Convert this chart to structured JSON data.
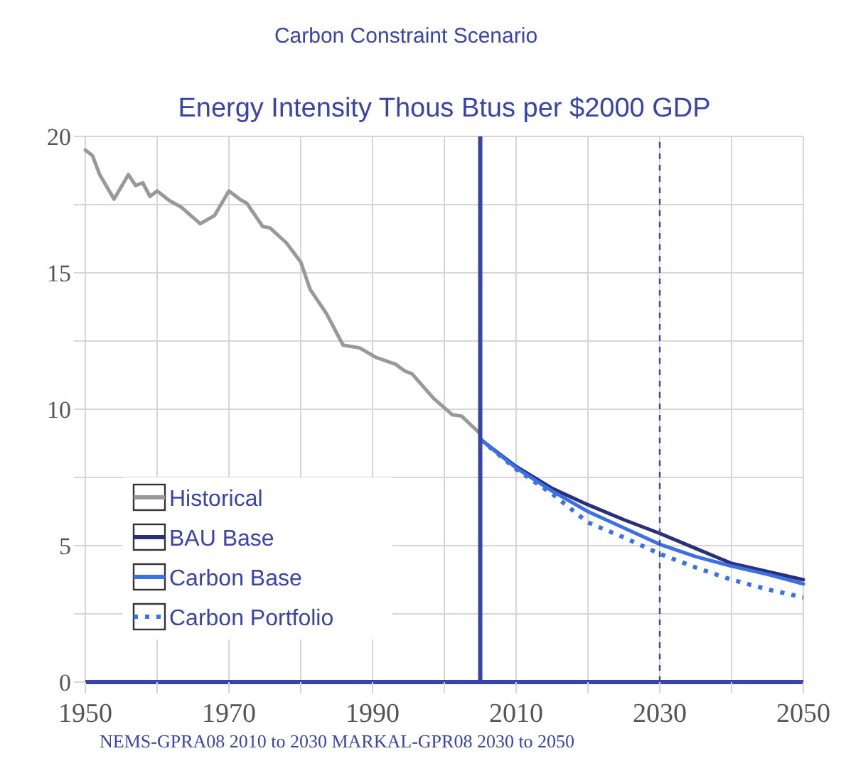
{
  "chart_data": {
    "type": "line",
    "title": "Carbon Constraint Scenario",
    "subtitle": "Energy Intensity Thous Btus per $2000 GDP",
    "annotations": [
      "NEMS-GPRA08 2010 to 2030  MARKAL-GPR08 2030 to 2050"
    ],
    "xlim": [
      1950,
      2050
    ],
    "xticks": [
      1950,
      {
        "value": 1960,
        "label": null
      },
      1970,
      {
        "value": 1980,
        "label": null
      },
      1990,
      {
        "value": 2000,
        "label": null
      },
      2010,
      {
        "value": 2020,
        "label": null
      },
      2030,
      {
        "value": 2040,
        "label": null
      },
      2050
    ],
    "ylim": [
      0,
      20
    ],
    "yticks": [
      0,
      {
        "value": 2.5,
        "label": null
      },
      5,
      {
        "value": 7.5,
        "label": null
      },
      10,
      {
        "value": 12.5,
        "label": null
      },
      15,
      {
        "value": 17.5,
        "label": null
      },
      20
    ],
    "grid": true,
    "legend": "bottom left",
    "marker": "none",
    "ref_lines": [
      {
        "axis": "x",
        "value": 2005,
        "color": "#3a44a8",
        "line_style": "solid"
      },
      {
        "axis": "x",
        "value": 2030,
        "color": "#3a44a8",
        "line_style": "dashed"
      }
    ],
    "series": [
      {
        "name": "Historical",
        "color": "#999999",
        "line_style": "solid",
        "x": [
          1950,
          1951,
          1952,
          1954,
          1956,
          1957,
          1958,
          1959,
          1960,
          1961.7,
          1963.4,
          1966,
          1968,
          1970,
          1971.5,
          1972.5,
          1974.7,
          1975.7,
          1978,
          1980,
          1981.3,
          1983.6,
          1985.9,
          1988.2,
          1990.5,
          1993.2,
          1994.5,
          1995.5,
          1998.5,
          2001.1,
          2002.4,
          2005
        ],
        "values": [
          19.5,
          19.3,
          18.6,
          17.7,
          18.6,
          18.2,
          18.3,
          17.8,
          18.0,
          17.65,
          17.4,
          16.8,
          17.1,
          18.0,
          17.7,
          17.55,
          16.7,
          16.65,
          16.1,
          15.4,
          14.4,
          13.5,
          12.35,
          12.25,
          11.9,
          11.65,
          11.4,
          11.3,
          10.4,
          9.8,
          9.75,
          9.1
        ]
      },
      {
        "name": "BAU Base",
        "color": "#2b2f7a",
        "line_style": "solid",
        "x": [
          2005,
          2010,
          2015,
          2020,
          2025,
          2030,
          2035,
          2040,
          2045,
          2050
        ],
        "values": [
          8.9,
          7.9,
          7.1,
          6.5,
          5.95,
          5.45,
          4.9,
          4.35,
          4.05,
          3.75
        ]
      },
      {
        "name": "Carbon Base",
        "color": "#3a72e6",
        "line_style": "solid",
        "x": [
          2005,
          2010,
          2015,
          2020,
          2025,
          2030,
          2035,
          2040,
          2045,
          2050
        ],
        "values": [
          8.9,
          7.85,
          7.0,
          6.25,
          5.65,
          5.05,
          4.6,
          4.25,
          3.95,
          3.6
        ]
      },
      {
        "name": "Carbon Portfolio",
        "color": "#3a72e6",
        "line_style": "dotted",
        "x": [
          2005,
          2010,
          2015,
          2020,
          2025,
          2030,
          2035,
          2040,
          2045,
          2050
        ],
        "values": [
          8.9,
          7.8,
          6.9,
          5.85,
          5.3,
          4.7,
          4.2,
          3.75,
          3.4,
          3.1
        ]
      }
    ]
  }
}
